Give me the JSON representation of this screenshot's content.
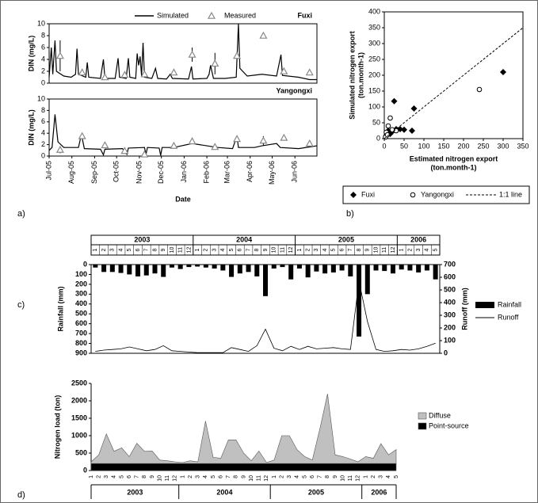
{
  "chart_data": [
    {
      "type": "line",
      "title": "Fuxi",
      "y_label": "DIN (mg/L)",
      "legend": true,
      "xlim": [
        0,
        365
      ],
      "ylim": [
        0,
        10
      ],
      "yticks": [
        0,
        2,
        4,
        6,
        8,
        10
      ],
      "series": [
        {
          "name": "Simulated",
          "kind": "line",
          "color": "#000000",
          "x": [
            0,
            3,
            5,
            8,
            10,
            20,
            30,
            36,
            38,
            40,
            50,
            52,
            54,
            70,
            74,
            76,
            90,
            94,
            96,
            105,
            108,
            110,
            118,
            120,
            122,
            124,
            126,
            128,
            130,
            140,
            145,
            148,
            160,
            165,
            168,
            190,
            194,
            196,
            215,
            218,
            220,
            224,
            240,
            255,
            258,
            260,
            270,
            290,
            310,
            316,
            318,
            340,
            355,
            365
          ],
          "values": [
            1,
            6,
            1.5,
            7.2,
            2,
            1.2,
            1,
            1.5,
            5.8,
            1.5,
            1,
            3.5,
            1,
            0.8,
            4,
            0.8,
            0.8,
            4.2,
            1,
            0.8,
            4.2,
            1,
            0.8,
            5,
            3,
            4.5,
            1.2,
            6.8,
            1,
            0.8,
            2.5,
            0.8,
            0.7,
            1.5,
            0.8,
            0.7,
            2.8,
            0.7,
            0.8,
            1.5,
            3,
            0.8,
            0.8,
            1,
            10,
            2.5,
            1.2,
            1.5,
            1.2,
            4.8,
            1.3,
            1,
            0.6,
            0.6
          ]
        },
        {
          "name": "Measured",
          "kind": "triangle",
          "color": "#888888",
          "x": [
            15,
            45,
            76,
            103,
            130,
            170,
            195,
            226,
            256,
            292,
            320,
            355
          ],
          "values": [
            4.6,
            1.8,
            1,
            1.4,
            1.5,
            1.8,
            4.8,
            3.3,
            4.6,
            8,
            2,
            1.8
          ],
          "errors": [
            2.6,
            0.6,
            0.3,
            0.2,
            0.3,
            0.3,
            1.2,
            1.8,
            0.5,
            0.4,
            0.2,
            0.2
          ]
        }
      ]
    },
    {
      "type": "line",
      "title": "Yangongxi",
      "y_label": "DIN (mg/L)",
      "x_label": "Date",
      "panel_label": "a)",
      "xlim": [
        0,
        365
      ],
      "ylim": [
        0,
        10
      ],
      "yticks": [
        0,
        2,
        4,
        6,
        8,
        10
      ],
      "xticks": [
        {
          "value": 0,
          "label": "Jul-05"
        },
        {
          "value": 31,
          "label": "Aug-05"
        },
        {
          "value": 62,
          "label": "Sep-05"
        },
        {
          "value": 92,
          "label": "Oct-05"
        },
        {
          "value": 123,
          "label": "Nov-05"
        },
        {
          "value": 153,
          "label": "Dec-05"
        },
        {
          "value": 184,
          "label": "Jan-06"
        },
        {
          "value": 215,
          "label": "Feb-06"
        },
        {
          "value": 243,
          "label": "Mar-06"
        },
        {
          "value": 274,
          "label": "Apr-06"
        },
        {
          "value": 304,
          "label": "May-06"
        },
        {
          "value": 335,
          "label": "Jun-06"
        }
      ],
      "series": [
        {
          "kind": "line",
          "color": "#000000",
          "x": [
            0,
            4,
            8,
            12,
            20,
            40,
            44,
            48,
            70,
            74,
            76,
            100,
            106,
            108,
            130,
            132,
            134,
            150,
            152,
            154,
            170,
            195,
            215,
            230,
            250,
            256,
            258,
            280,
            290,
            310,
            315,
            340,
            360,
            365
          ],
          "values": [
            1,
            1.5,
            7.3,
            2.5,
            1.5,
            1.5,
            3.8,
            1.3,
            1.2,
            0.2,
            1.2,
            1.3,
            0.3,
            1.4,
            1.5,
            0.3,
            1.5,
            1.4,
            0.1,
            1.5,
            1.5,
            2.2,
            1.8,
            1.5,
            1.3,
            3.5,
            1.5,
            1.5,
            1.8,
            2.2,
            1.5,
            1.3,
            1.7,
            1.8
          ]
        },
        {
          "kind": "triangle",
          "color": "#888888",
          "x": [
            15,
            45,
            76,
            103,
            130,
            170,
            195,
            226,
            256,
            292,
            320,
            355
          ],
          "values": [
            1.1,
            3.5,
            1.9,
            0.9,
            0.3,
            1.8,
            2.6,
            1.6,
            3,
            2.7,
            3.2,
            2.2
          ],
          "errors": [
            0.6,
            0.2,
            0.2,
            0.2,
            0.1,
            0.2,
            0.2,
            0.2,
            0.4,
            0.8,
            0.2,
            0.4
          ]
        }
      ]
    },
    {
      "type": "scatter",
      "panel_label": "b)",
      "y_label": [
        "Simulated nitrogen export",
        "(ton.month-1)"
      ],
      "x_label": [
        "Estimated nitrogen export",
        "(ton.month-1)"
      ],
      "xlim": [
        0,
        350
      ],
      "ylim": [
        0,
        400
      ],
      "xticks": [
        0,
        50,
        100,
        150,
        200,
        250,
        300,
        350
      ],
      "yticks": [
        0,
        50,
        100,
        150,
        200,
        250,
        300,
        350,
        400
      ],
      "series": [
        {
          "name": "Fuxi",
          "kind": "diamond",
          "color": "#000000",
          "x": [
            300,
            75,
            25,
            10,
            30,
            50,
            70,
            5,
            15,
            20,
            40
          ],
          "values": [
            210,
            95,
            118,
            25,
            30,
            28,
            25,
            10,
            15,
            22,
            30
          ]
        },
        {
          "name": "Yangongxi",
          "kind": "circle",
          "color": "#000000",
          "x": [
            240,
            15,
            10,
            5,
            20,
            30,
            3,
            8
          ],
          "values": [
            155,
            65,
            40,
            20,
            28,
            25,
            5,
            12
          ]
        },
        {
          "name": "1:1 line",
          "kind": "dashed",
          "color": "#000000",
          "x": [
            0,
            350
          ],
          "values": [
            0,
            350
          ]
        }
      ]
    },
    {
      "type": "bar_line",
      "panel_label": "c)",
      "y_label": "Rainfall (mm)",
      "y2_label": "Runoff (mm)",
      "years": [
        "2003",
        "2004",
        "2005",
        "2006"
      ],
      "categories": [
        "1",
        "2",
        "3",
        "4",
        "5",
        "6",
        "7",
        "8",
        "9",
        "10",
        "11",
        "12",
        "1",
        "2",
        "3",
        "4",
        "5",
        "6",
        "7",
        "8",
        "9",
        "10",
        "11",
        "12",
        "1",
        "2",
        "3",
        "4",
        "5",
        "6",
        "7",
        "8",
        "9",
        "10",
        "11",
        "12",
        "1",
        "2",
        "3",
        "4",
        "5"
      ],
      "ylim": [
        0,
        900
      ],
      "y_inverted": true,
      "yticks": [
        0,
        100,
        200,
        300,
        400,
        500,
        600,
        700,
        800,
        900
      ],
      "y2lim": [
        0,
        700
      ],
      "y2ticks": [
        0,
        100,
        200,
        300,
        400,
        500,
        600,
        700
      ],
      "series": [
        {
          "name": "Rainfall",
          "kind": "bar",
          "color": "#000000",
          "values": [
            30,
            75,
            75,
            85,
            100,
            120,
            110,
            90,
            125,
            30,
            45,
            25,
            20,
            30,
            40,
            60,
            125,
            90,
            75,
            120,
            320,
            40,
            25,
            150,
            40,
            130,
            70,
            90,
            80,
            60,
            120,
            730,
            300,
            60,
            65,
            90,
            50,
            60,
            80,
            60,
            150
          ]
        },
        {
          "name": "Runoff",
          "kind": "line",
          "axis": "y2",
          "color": "#000000",
          "values": [
            15,
            25,
            30,
            35,
            50,
            35,
            20,
            30,
            60,
            20,
            15,
            10,
            5,
            5,
            5,
            5,
            45,
            30,
            15,
            60,
            190,
            40,
            20,
            55,
            30,
            55,
            35,
            40,
            45,
            35,
            30,
            570,
            250,
            30,
            15,
            20,
            30,
            25,
            35,
            55,
            80
          ]
        }
      ]
    },
    {
      "type": "area",
      "panel_label": "d)",
      "y_label": "Nitrogen load (ton)",
      "stacked": true,
      "years": [
        "2003",
        "2004",
        "2005",
        "2006"
      ],
      "categories": [
        "1",
        "2",
        "3",
        "4",
        "5",
        "6",
        "7",
        "8",
        "9",
        "10",
        "11",
        "12",
        "1",
        "2",
        "3",
        "4",
        "5",
        "6",
        "7",
        "8",
        "9",
        "10",
        "11",
        "12",
        "1",
        "2",
        "3",
        "4",
        "5",
        "6",
        "7",
        "8",
        "9",
        "10",
        "11",
        "12",
        "1",
        "2",
        "3",
        "4",
        "5"
      ],
      "ylim": [
        0,
        2500
      ],
      "yticks": [
        0,
        500,
        1000,
        1500,
        2000,
        2500
      ],
      "series": [
        {
          "name": "Point-source",
          "color": "#000000",
          "values": [
            200,
            200,
            200,
            200,
            200,
            200,
            200,
            200,
            200,
            200,
            200,
            200,
            200,
            200,
            200,
            200,
            200,
            200,
            200,
            200,
            200,
            200,
            200,
            200,
            200,
            200,
            200,
            200,
            200,
            200,
            200,
            200,
            200,
            200,
            200,
            200,
            200,
            200,
            200,
            200,
            200
          ]
        },
        {
          "name": "Diffuse",
          "color": "#c0c0c0",
          "values": [
            50,
            250,
            850,
            350,
            450,
            200,
            580,
            350,
            360,
            100,
            80,
            50,
            30,
            80,
            50,
            1220,
            180,
            150,
            680,
            680,
            300,
            80,
            360,
            30,
            100,
            800,
            800,
            400,
            200,
            100,
            1000,
            2000,
            250,
            200,
            130,
            50,
            200,
            150,
            570,
            250,
            400
          ]
        }
      ]
    }
  ]
}
